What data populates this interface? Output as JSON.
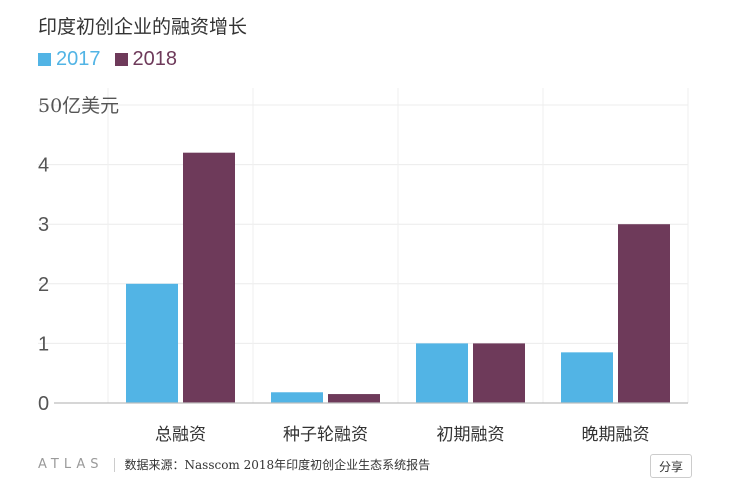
{
  "chart_data": {
    "type": "bar",
    "title": "印度初创企业的融资增长",
    "ylabel": "50亿美元",
    "categories": [
      "总融资",
      "种子轮融资",
      "初期融资",
      "晚期融资"
    ],
    "series": [
      {
        "name": "2017",
        "color": "#52b4e5",
        "values": [
          2.0,
          0.18,
          1.0,
          0.85
        ]
      },
      {
        "name": "2018",
        "color": "#6e3a5a",
        "values": [
          4.2,
          0.15,
          1.0,
          3.0
        ]
      }
    ],
    "yticks": [
      "0",
      "1",
      "2",
      "3",
      "4"
    ],
    "ylim": [
      0,
      5
    ],
    "grid": true,
    "legend": "top-left"
  },
  "footer": {
    "brand": "ATLAS",
    "source": "数据来源：Nasscom 2018年印度初创企业生态系统报告",
    "share_label": "分享"
  }
}
